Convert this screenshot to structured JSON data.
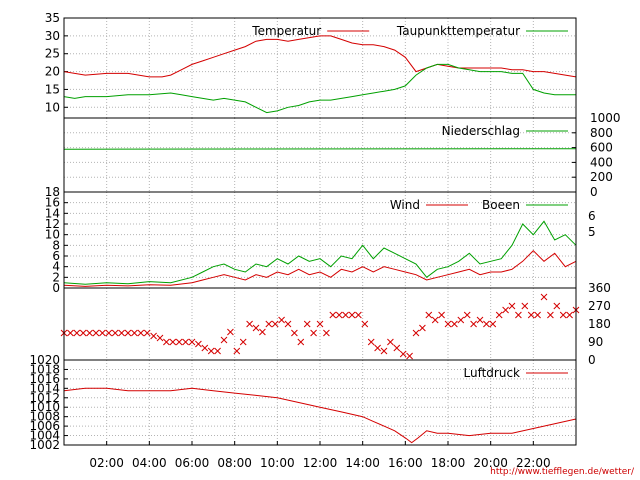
{
  "colors": {
    "red": "#d40000",
    "green": "#00a000",
    "grid": "#b4b4b4",
    "axis": "#000000"
  },
  "footer_url": "http://www.tiefflegen.de/wetter/",
  "x_axis": {
    "ticks": [
      "02:00",
      "04:00",
      "06:00",
      "08:00",
      "10:00",
      "12:00",
      "14:00",
      "16:00",
      "18:00",
      "20:00",
      "22:00"
    ],
    "range_hours": [
      0,
      24
    ]
  },
  "chart_data": [
    {
      "type": "line",
      "ylim": [
        7,
        35
      ],
      "yticks": [
        10,
        15,
        20,
        25,
        30,
        35
      ],
      "series": [
        {
          "name": "Temperatur",
          "color": "red",
          "x": [
            0,
            1,
            2,
            3,
            4,
            4.6,
            5,
            5.5,
            6,
            6.5,
            7,
            7.5,
            8,
            8.5,
            9,
            9.5,
            10,
            10.5,
            11,
            11.5,
            12,
            12.5,
            13,
            13.5,
            14,
            14.5,
            15,
            15.5,
            16,
            16.5,
            17,
            17.5,
            18,
            18.5,
            19,
            19.5,
            20,
            20.5,
            21,
            21.5,
            22,
            22.5,
            23,
            23.5,
            24
          ],
          "y": [
            20,
            19,
            19.5,
            19.5,
            18.5,
            18.5,
            19,
            20.5,
            22,
            23,
            24,
            25,
            26,
            27,
            28.5,
            29,
            29,
            28.5,
            29,
            29.5,
            30,
            30,
            29,
            28,
            27.5,
            27.5,
            27,
            26,
            24,
            20,
            21,
            22,
            21.5,
            21,
            21,
            21,
            21,
            21,
            20.5,
            20.5,
            20,
            20,
            19.5,
            19,
            18.5
          ]
        },
        {
          "name": "Taupunkttemperatur",
          "color": "green",
          "x": [
            0,
            0.5,
            1,
            2,
            3,
            4,
            5,
            5.5,
            6,
            6.5,
            7,
            7.5,
            8,
            8.5,
            9,
            9.5,
            10,
            10.5,
            11,
            11.5,
            12,
            12.5,
            13,
            13.5,
            14,
            14.5,
            15,
            15.5,
            16,
            16.5,
            17,
            17.5,
            18,
            18.5,
            19,
            19.5,
            20,
            20.5,
            21,
            21.5,
            22,
            22.5,
            23,
            23.5,
            24
          ],
          "y": [
            13,
            12.5,
            13,
            13,
            13.5,
            13.5,
            14,
            13.5,
            13,
            12.5,
            12,
            12.5,
            12,
            11.5,
            10,
            8.5,
            9,
            10,
            10.5,
            11.5,
            12,
            12,
            12.5,
            13,
            13.5,
            14,
            14.5,
            15,
            16,
            19,
            21,
            22,
            22,
            21,
            20.5,
            20,
            20,
            20,
            19.5,
            19.5,
            15,
            14,
            13.5,
            13.5,
            13.5
          ]
        }
      ]
    },
    {
      "type": "line",
      "ylim": [
        0,
        1000
      ],
      "yticks": [
        0,
        200,
        400,
        600,
        800,
        1000
      ],
      "series": [
        {
          "name": "Niederschlag",
          "color": "green",
          "x": [
            0,
            24
          ],
          "y": [
            578,
            585
          ]
        }
      ]
    },
    {
      "type": "line",
      "ylim": [
        0,
        18
      ],
      "yticks": [
        0,
        2,
        4,
        6,
        8,
        10,
        12,
        14,
        16,
        18
      ],
      "right_ticks": [
        "5",
        "6"
      ],
      "series": [
        {
          "name": "Wind",
          "color": "red",
          "x": [
            0,
            1,
            2,
            3,
            4,
            5,
            6,
            6.5,
            7,
            7.5,
            8,
            8.5,
            9,
            9.5,
            10,
            10.5,
            11,
            11.5,
            12,
            12.5,
            13,
            13.5,
            14,
            14.5,
            15,
            15.5,
            16,
            16.5,
            17,
            17.5,
            18,
            18.5,
            19,
            19.5,
            20,
            20.5,
            21,
            21.5,
            22,
            22.5,
            23,
            23.5,
            24
          ],
          "y": [
            0.5,
            0.3,
            0.5,
            0.4,
            0.6,
            0.5,
            1,
            1.5,
            2,
            2.5,
            2,
            1.5,
            2.5,
            2,
            3,
            2.5,
            3.5,
            2.5,
            3,
            2,
            3.5,
            3,
            4,
            3,
            4,
            3.5,
            3,
            2.5,
            1.5,
            2,
            2.5,
            3,
            3.5,
            2.5,
            3,
            3,
            3.5,
            5,
            7,
            5,
            6.5,
            4,
            5
          ]
        },
        {
          "name": "Boeen",
          "color": "green",
          "x": [
            0,
            1,
            2,
            3,
            4,
            5,
            6,
            6.5,
            7,
            7.5,
            8,
            8.5,
            9,
            9.5,
            10,
            10.5,
            11,
            11.5,
            12,
            12.5,
            13,
            13.5,
            14,
            14.5,
            15,
            15.5,
            16,
            16.5,
            17,
            17.5,
            18,
            18.5,
            19,
            19.5,
            20,
            20.5,
            21,
            21.5,
            22,
            22.5,
            23,
            23.5,
            24
          ],
          "y": [
            1,
            0.7,
            1,
            0.8,
            1.2,
            1,
            2,
            3,
            4,
            4.5,
            3.5,
            3,
            4.5,
            4,
            5.5,
            4.5,
            6,
            5,
            5.5,
            4,
            6,
            5.5,
            8,
            5.5,
            7.5,
            6.5,
            5.5,
            4.5,
            2,
            3.5,
            4,
            5,
            6.5,
            4.5,
            5,
            5.5,
            8,
            12,
            10,
            12.5,
            9,
            10,
            8
          ]
        }
      ]
    },
    {
      "type": "scatter",
      "ylim": [
        0,
        360
      ],
      "right_ticks": [
        "0",
        "90",
        "180",
        "270",
        "360"
      ],
      "series": [
        {
          "name": "",
          "color": "red",
          "x": [
            0,
            0.3,
            0.6,
            0.9,
            1.2,
            1.5,
            1.8,
            2.1,
            2.4,
            2.7,
            3,
            3.3,
            3.6,
            3.9,
            4.2,
            4.5,
            4.8,
            5.1,
            5.4,
            5.7,
            6,
            6.3,
            6.6,
            6.9,
            7.2,
            7.5,
            7.8,
            8.1,
            8.4,
            8.7,
            9,
            9.3,
            9.6,
            9.9,
            10.2,
            10.5,
            10.8,
            11.1,
            11.4,
            11.7,
            12,
            12.3,
            12.6,
            12.9,
            13.2,
            13.5,
            13.8,
            14.1,
            14.4,
            14.7,
            15,
            15.3,
            15.6,
            15.9,
            16.2,
            16.5,
            16.8,
            17.1,
            17.4,
            17.7,
            18,
            18.3,
            18.6,
            18.9,
            19.2,
            19.5,
            19.8,
            20.1,
            20.4,
            20.7,
            21,
            21.3,
            21.6,
            21.9,
            22.2,
            22.5,
            22.8,
            23.1,
            23.4,
            23.7,
            24
          ],
          "y": [
            135,
            135,
            135,
            135,
            135,
            135,
            135,
            135,
            135,
            135,
            135,
            135,
            135,
            135,
            120,
            110,
            90,
            90,
            90,
            90,
            90,
            80,
            60,
            45,
            45,
            100,
            140,
            45,
            90,
            180,
            160,
            140,
            180,
            180,
            200,
            180,
            135,
            90,
            180,
            135,
            180,
            135,
            225,
            225,
            225,
            225,
            225,
            180,
            90,
            60,
            45,
            90,
            60,
            30,
            20,
            135,
            160,
            225,
            200,
            225,
            180,
            180,
            200,
            225,
            180,
            200,
            180,
            180,
            225,
            250,
            270,
            225,
            270,
            225,
            225,
            315,
            225,
            270,
            225,
            225,
            250
          ]
        }
      ]
    },
    {
      "type": "line",
      "ylim": [
        1002,
        1020
      ],
      "yticks": [
        1002,
        1004,
        1006,
        1008,
        1010,
        1012,
        1014,
        1016,
        1018,
        1020
      ],
      "series": [
        {
          "name": "Luftdruck",
          "color": "red",
          "x": [
            0,
            1,
            2,
            3,
            4,
            5,
            6,
            7,
            8,
            9,
            10,
            11,
            12,
            13,
            14,
            14.5,
            15,
            15.5,
            16,
            16.3,
            16.6,
            17,
            17.5,
            18,
            19,
            20,
            21,
            22,
            23,
            24
          ],
          "y": [
            1013.5,
            1014,
            1014,
            1013.5,
            1013.5,
            1013.5,
            1014,
            1013.5,
            1013,
            1012.5,
            1012,
            1011,
            1010,
            1009,
            1008,
            1007,
            1006,
            1005,
            1003.5,
            1002.5,
            1003.5,
            1005,
            1004.5,
            1004.5,
            1004,
            1004.5,
            1004.5,
            1005.5,
            1006.5,
            1007.5
          ]
        }
      ]
    }
  ]
}
